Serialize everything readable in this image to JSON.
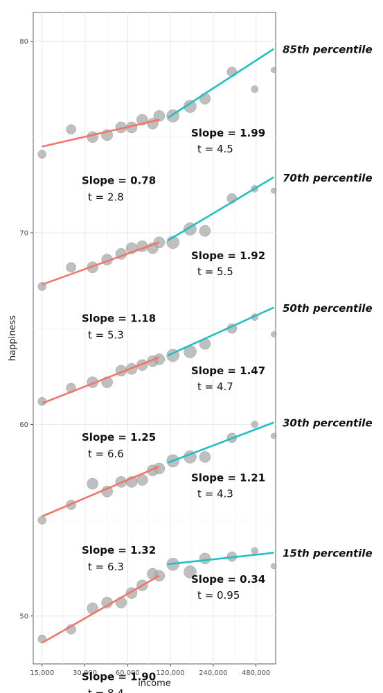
{
  "chart_data": {
    "type": "scatter",
    "xlabel": "income",
    "ylabel": "happiness",
    "x_scale": "log2",
    "xlim": [
      13000,
      660000
    ],
    "ylim": [
      47.5,
      81.5
    ],
    "x_ticks": [
      15000,
      30000,
      60000,
      120000,
      240000,
      480000
    ],
    "x_tick_labels": [
      "15,000",
      "30,000",
      "60,000",
      "120,000",
      "240,000",
      "480,000"
    ],
    "y_ticks": [
      50,
      60,
      70,
      80
    ],
    "y_tick_labels": [
      "50",
      "60",
      "70",
      "80"
    ],
    "grid": true,
    "colors": {
      "low_fit": "#f0766b",
      "high_fit": "#1fbfc3",
      "points": "#a6a6a6",
      "grid": "#ebebeb"
    },
    "income_bins": [
      15000,
      25000,
      35000,
      45000,
      55000,
      65000,
      75000,
      90000,
      100000,
      125000,
      175000,
      250000,
      400000,
      625000
    ],
    "point_sizes": [
      4,
      4,
      5,
      5,
      5,
      5,
      5,
      5,
      5,
      6,
      6,
      5,
      3,
      2
    ],
    "series": [
      {
        "name": "85th percentile",
        "values": [
          74.1,
          75.4,
          75.0,
          75.1,
          75.5,
          75.5,
          75.9,
          75.7,
          76.1,
          76.1,
          76.6,
          77.0,
          78.4,
          77.5,
          78.5
        ],
        "low_fit": {
          "x": [
            15000,
            100000
          ],
          "y": [
            74.5,
            75.9
          ]
        },
        "high_fit": {
          "x": [
            115000,
            640000
          ],
          "y": [
            76.0,
            79.6
          ]
        },
        "low_slope": "Slope = 0.78",
        "low_t": "t = 2.8",
        "high_slope": "Slope = 1.99",
        "high_t": "t = 4.5"
      },
      {
        "name": "70th percentile",
        "values": [
          67.2,
          68.2,
          68.2,
          68.6,
          68.9,
          69.2,
          69.3,
          69.2,
          69.5,
          69.5,
          70.2,
          70.1,
          71.8,
          72.3,
          72.2
        ],
        "low_fit": {
          "x": [
            15000,
            100000
          ],
          "y": [
            67.3,
            69.5
          ]
        },
        "high_fit": {
          "x": [
            115000,
            640000
          ],
          "y": [
            69.6,
            72.9
          ]
        },
        "low_slope": "Slope = 1.18",
        "low_t": "t = 5.3",
        "high_slope": "Slope = 1.92",
        "high_t": "t = 5.5"
      },
      {
        "name": "50th percentile",
        "values": [
          61.2,
          61.9,
          62.2,
          62.2,
          62.8,
          62.9,
          63.1,
          63.3,
          63.4,
          63.6,
          63.8,
          64.2,
          65.0,
          65.6,
          64.7
        ],
        "low_fit": {
          "x": [
            15000,
            100000
          ],
          "y": [
            61.1,
            63.5
          ]
        },
        "high_fit": {
          "x": [
            115000,
            640000
          ],
          "y": [
            63.6,
            66.1
          ]
        },
        "low_slope": "Slope = 1.25",
        "low_t": "t = 6.6",
        "high_slope": "Slope = 1.47",
        "high_t": "t = 4.7"
      },
      {
        "name": "30th percentile",
        "values": [
          55.0,
          55.8,
          56.9,
          56.5,
          57.0,
          57.0,
          57.1,
          57.6,
          57.7,
          58.1,
          58.3,
          58.3,
          59.3,
          60.0,
          59.4
        ],
        "low_fit": {
          "x": [
            15000,
            100000
          ],
          "y": [
            55.2,
            57.8
          ]
        },
        "high_fit": {
          "x": [
            115000,
            640000
          ],
          "y": [
            58.0,
            60.1
          ]
        },
        "low_slope": "Slope = 1.32",
        "low_t": "t = 6.3",
        "high_slope": "Slope = 1.21",
        "high_t": "t = 4.3"
      },
      {
        "name": "15th percentile",
        "values": [
          48.8,
          49.3,
          50.4,
          50.7,
          50.7,
          51.2,
          51.6,
          52.2,
          52.1,
          52.7,
          52.3,
          53.0,
          53.1,
          53.4,
          52.6
        ],
        "low_fit": {
          "x": [
            15000,
            100000
          ],
          "y": [
            48.6,
            52.1
          ]
        },
        "high_fit": {
          "x": [
            115000,
            640000
          ],
          "y": [
            52.7,
            53.3
          ]
        },
        "low_slope": "Slope = 1.90",
        "low_t": "t = 8.4",
        "high_slope": "Slope = 0.34",
        "high_t": "t = 0.95"
      }
    ],
    "point_x": [
      15000,
      24000,
      34000,
      43000,
      54000,
      64000,
      76000,
      90000,
      100000,
      125000,
      165000,
      210000,
      325000,
      470000,
      640000
    ],
    "point_size": [
      6,
      7,
      8,
      8,
      8,
      8,
      8,
      8,
      8,
      9,
      9,
      8,
      7,
      5,
      4
    ]
  }
}
